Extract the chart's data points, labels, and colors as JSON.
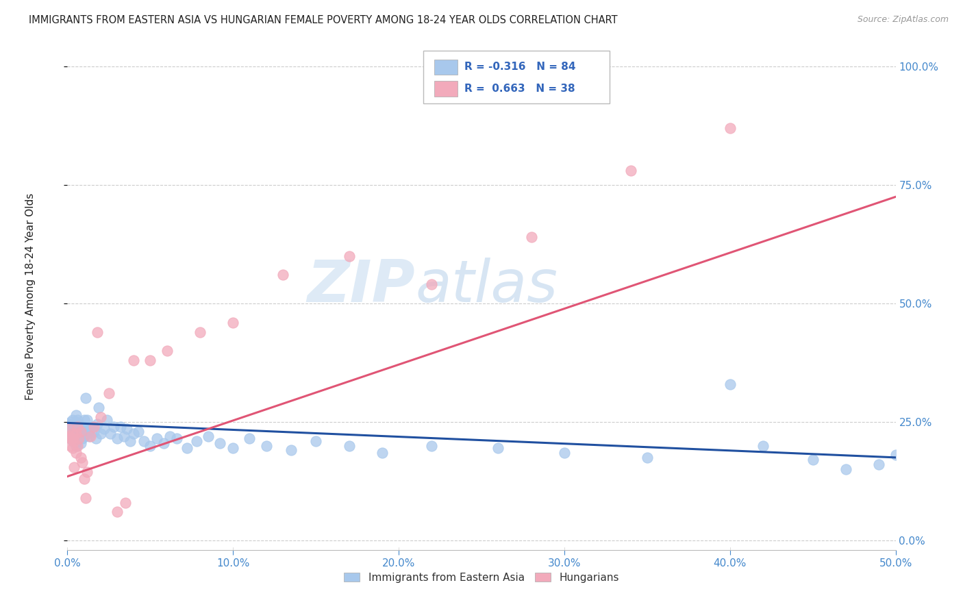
{
  "title": "IMMIGRANTS FROM EASTERN ASIA VS HUNGARIAN FEMALE POVERTY AMONG 18-24 YEAR OLDS CORRELATION CHART",
  "source": "Source: ZipAtlas.com",
  "ylabel": "Female Poverty Among 18-24 Year Olds",
  "xlim": [
    0.0,
    0.5
  ],
  "ylim": [
    -0.02,
    1.05
  ],
  "blue_color": "#a8c8ec",
  "pink_color": "#f2aabb",
  "blue_line_color": "#2050a0",
  "pink_line_color": "#e05575",
  "legend_R_blue": "-0.316",
  "legend_N_blue": "84",
  "legend_R_pink": "0.663",
  "legend_N_pink": "38",
  "watermark_zip": "ZIP",
  "watermark_atlas": "atlas",
  "blue_line_y0": 0.248,
  "blue_line_y1": 0.175,
  "pink_line_y0": 0.135,
  "pink_line_y1": 0.725,
  "blue_scatter_x": [
    0.001,
    0.001,
    0.001,
    0.002,
    0.002,
    0.002,
    0.003,
    0.003,
    0.003,
    0.003,
    0.004,
    0.004,
    0.004,
    0.004,
    0.005,
    0.005,
    0.005,
    0.005,
    0.005,
    0.006,
    0.006,
    0.006,
    0.006,
    0.007,
    0.007,
    0.007,
    0.008,
    0.008,
    0.008,
    0.009,
    0.009,
    0.01,
    0.01,
    0.01,
    0.011,
    0.011,
    0.012,
    0.012,
    0.013,
    0.014,
    0.015,
    0.016,
    0.017,
    0.018,
    0.019,
    0.02,
    0.022,
    0.024,
    0.026,
    0.028,
    0.03,
    0.032,
    0.034,
    0.036,
    0.038,
    0.04,
    0.043,
    0.046,
    0.05,
    0.054,
    0.058,
    0.062,
    0.066,
    0.072,
    0.078,
    0.085,
    0.092,
    0.1,
    0.11,
    0.12,
    0.135,
    0.15,
    0.17,
    0.19,
    0.22,
    0.26,
    0.3,
    0.35,
    0.4,
    0.42,
    0.45,
    0.47,
    0.49,
    0.5
  ],
  "blue_scatter_y": [
    0.235,
    0.22,
    0.245,
    0.215,
    0.23,
    0.25,
    0.21,
    0.225,
    0.24,
    0.255,
    0.22,
    0.235,
    0.215,
    0.245,
    0.2,
    0.22,
    0.235,
    0.25,
    0.265,
    0.21,
    0.225,
    0.24,
    0.255,
    0.215,
    0.23,
    0.245,
    0.205,
    0.22,
    0.235,
    0.215,
    0.23,
    0.255,
    0.235,
    0.22,
    0.3,
    0.24,
    0.225,
    0.255,
    0.22,
    0.235,
    0.24,
    0.23,
    0.215,
    0.245,
    0.28,
    0.225,
    0.235,
    0.255,
    0.225,
    0.24,
    0.215,
    0.24,
    0.22,
    0.235,
    0.21,
    0.225,
    0.23,
    0.21,
    0.2,
    0.215,
    0.205,
    0.22,
    0.215,
    0.195,
    0.21,
    0.22,
    0.205,
    0.195,
    0.215,
    0.2,
    0.19,
    0.21,
    0.2,
    0.185,
    0.2,
    0.195,
    0.185,
    0.175,
    0.33,
    0.2,
    0.17,
    0.15,
    0.16,
    0.18
  ],
  "pink_scatter_x": [
    0.001,
    0.001,
    0.002,
    0.002,
    0.003,
    0.003,
    0.003,
    0.004,
    0.004,
    0.005,
    0.005,
    0.006,
    0.006,
    0.007,
    0.008,
    0.008,
    0.009,
    0.01,
    0.011,
    0.012,
    0.014,
    0.016,
    0.018,
    0.02,
    0.025,
    0.03,
    0.035,
    0.04,
    0.05,
    0.06,
    0.08,
    0.1,
    0.13,
    0.17,
    0.22,
    0.28,
    0.34,
    0.4
  ],
  "pink_scatter_y": [
    0.22,
    0.235,
    0.2,
    0.215,
    0.195,
    0.215,
    0.225,
    0.155,
    0.21,
    0.185,
    0.225,
    0.2,
    0.24,
    0.215,
    0.175,
    0.23,
    0.165,
    0.13,
    0.09,
    0.145,
    0.22,
    0.24,
    0.44,
    0.26,
    0.31,
    0.06,
    0.08,
    0.38,
    0.38,
    0.4,
    0.44,
    0.46,
    0.56,
    0.6,
    0.54,
    0.64,
    0.78,
    0.87
  ]
}
